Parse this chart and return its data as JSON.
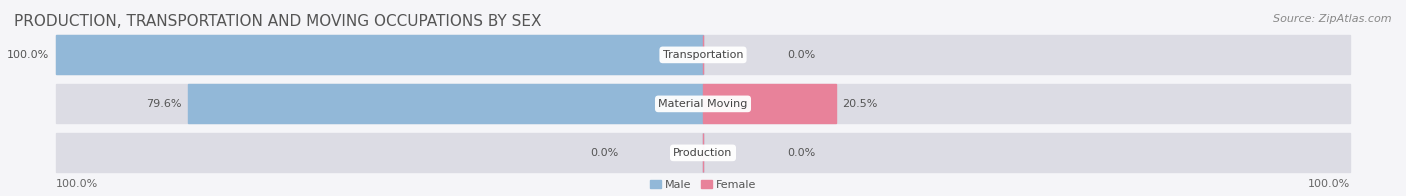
{
  "title": "PRODUCTION, TRANSPORTATION AND MOVING OCCUPATIONS BY SEX",
  "source": "Source: ZipAtlas.com",
  "categories": [
    "Transportation",
    "Material Moving",
    "Production"
  ],
  "male_values": [
    100.0,
    79.6,
    0.0
  ],
  "female_values": [
    0.0,
    20.5,
    0.0
  ],
  "male_color": "#92b8d8",
  "female_color": "#e8829a",
  "male_color_light": "#b8d4e8",
  "female_color_light": "#f0b0c0",
  "bar_bg_color": "#e8e8ec",
  "label_bg_color": "#ffffff",
  "title_fontsize": 11,
  "source_fontsize": 8,
  "label_fontsize": 8,
  "value_fontsize": 8,
  "axis_label_fontsize": 8,
  "background_color": "#f5f5f8",
  "bar_background": "#dcdce4",
  "axis_left_label": "100.0%",
  "axis_right_label": "100.0%"
}
